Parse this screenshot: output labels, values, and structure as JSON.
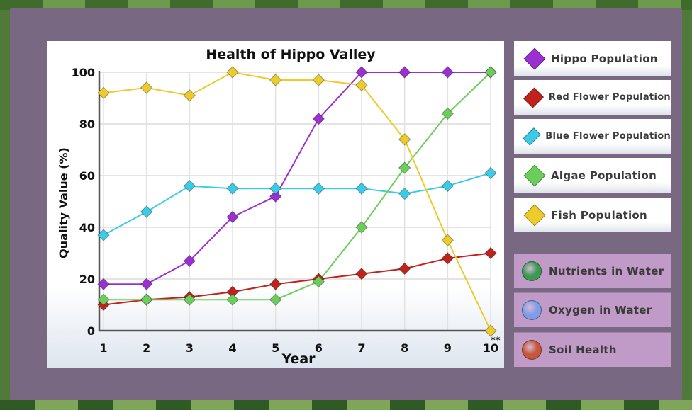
{
  "chart_data": {
    "type": "line",
    "title": "Health of Hippo Valley",
    "xlabel": "Year",
    "ylabel": "Quality Value (%)",
    "x": [
      1,
      2,
      3,
      4,
      5,
      6,
      7,
      8,
      9,
      10
    ],
    "x_tick_labels": [
      "1",
      "2",
      "3",
      "4",
      "5",
      "6",
      "7",
      "8",
      "9",
      "10"
    ],
    "y_ticks": [
      0,
      20,
      40,
      60,
      80,
      100
    ],
    "y_tick_labels": [
      "0",
      "20",
      "40",
      "60",
      "80",
      "100"
    ],
    "ylim": [
      0,
      100
    ],
    "grid": true,
    "legend_position": "right",
    "series": [
      {
        "name": "Hippo Population",
        "color": "#9b30d0",
        "values": [
          18,
          18,
          27,
          44,
          52,
          82,
          100,
          100,
          100,
          100
        ]
      },
      {
        "name": "Red Flower Population",
        "color": "#c0231b",
        "values": [
          10,
          12,
          13,
          15,
          18,
          20,
          22,
          24,
          28,
          30
        ]
      },
      {
        "name": "Blue Flower Population",
        "color": "#3ccbe6",
        "values": [
          37,
          46,
          56,
          55,
          55,
          55,
          55,
          53,
          56,
          61
        ]
      },
      {
        "name": "Algae Population",
        "color": "#6cce5a",
        "values": [
          12,
          12,
          12,
          12,
          12,
          19,
          40,
          63,
          84,
          100
        ]
      },
      {
        "name": "Fish Population",
        "color": "#eccb2a",
        "values": [
          92,
          94,
          91,
          101,
          97,
          97,
          95,
          74,
          35,
          0
        ]
      }
    ]
  },
  "legend_extra": [
    {
      "name": "Nutrients in Water",
      "color": "#3c9a54"
    },
    {
      "name": "Oxygen in Water",
      "color": "#7f9ce6"
    },
    {
      "name": "Soil Health",
      "color": "#c5573b"
    }
  ],
  "footnote_marker": "**"
}
